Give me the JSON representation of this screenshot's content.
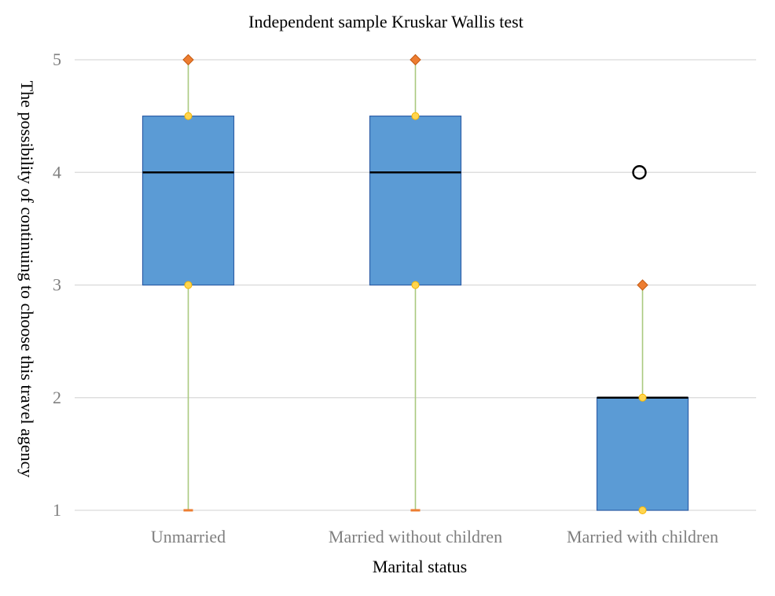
{
  "chart_data": {
    "type": "box",
    "title": "Independent sample Kruskar Wallis test",
    "xlabel": "Marital status",
    "ylabel": "The possibility of continuing to choose this travel agency",
    "ylim": [
      1,
      5
    ],
    "yticks": [
      "1",
      "2",
      "3",
      "4",
      "5"
    ],
    "grid": true,
    "categories": [
      "Unmarried",
      "Married without children",
      "Married with children"
    ],
    "boxes": [
      {
        "category": "Unmarried",
        "min": 1,
        "q1": 3,
        "median": 4,
        "q3": 4.5,
        "max": 5,
        "outliers": []
      },
      {
        "category": "Married without children",
        "min": 1,
        "q1": 3,
        "median": 4,
        "q3": 4.5,
        "max": 5,
        "outliers": []
      },
      {
        "category": "Married with children",
        "min": 1,
        "q1": 1,
        "median": 2,
        "q3": 2,
        "max": 3,
        "outliers": [
          4
        ]
      }
    ],
    "colors": {
      "box_fill": "#5b9bd5",
      "box_stroke": "#2f5fa8",
      "median": "#000000",
      "whisker": "#a9c97f",
      "extreme_marker": "#ed7d31",
      "quartile_marker": "#ffd54f",
      "grid": "#d9d9d9",
      "outlier": "#000000"
    }
  }
}
